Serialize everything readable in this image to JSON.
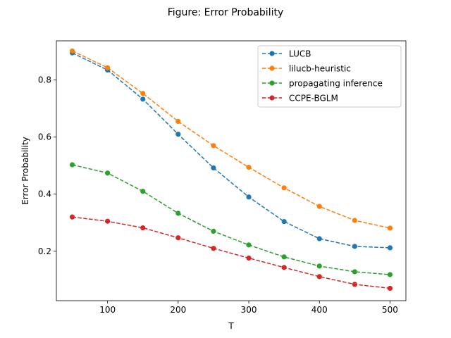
{
  "chart_data": {
    "type": "line",
    "title": "Figure: Error Probability",
    "xlabel": "T",
    "ylabel": "Error Probability",
    "xlim": [
      27.5,
      522.5
    ],
    "ylim": [
      0.0267,
      0.9373
    ],
    "xticks": [
      100,
      200,
      300,
      400,
      500
    ],
    "yticks": [
      0.2,
      0.4,
      0.6,
      0.8
    ],
    "xtick_labels": [
      "100",
      "200",
      "300",
      "400",
      "500"
    ],
    "ytick_labels": [
      "0.2",
      "0.4",
      "0.6",
      "0.8"
    ],
    "grid": false,
    "legend_position": "top-right",
    "x": [
      50,
      100,
      150,
      200,
      250,
      300,
      350,
      400,
      450,
      500
    ],
    "series": [
      {
        "name": "LUCB",
        "color": "#1f77b4",
        "line_style": "dashed",
        "marker": "circle",
        "values": [
          0.895,
          0.835,
          0.733,
          0.61,
          0.492,
          0.39,
          0.304,
          0.244,
          0.217,
          0.212
        ]
      },
      {
        "name": "lilucb-heuristic",
        "color": "#ff7f0e",
        "line_style": "dashed",
        "marker": "circle",
        "values": [
          0.902,
          0.843,
          0.753,
          0.655,
          0.57,
          0.494,
          0.422,
          0.357,
          0.308,
          0.281
        ]
      },
      {
        "name": "propagating inference",
        "color": "#2ca02c",
        "line_style": "dashed",
        "marker": "circle",
        "values": [
          0.503,
          0.474,
          0.41,
          0.333,
          0.27,
          0.222,
          0.18,
          0.148,
          0.128,
          0.118
        ]
      },
      {
        "name": "CCPE-BGLM",
        "color": "#d62728",
        "line_style": "dashed",
        "marker": "circle",
        "values": [
          0.32,
          0.305,
          0.282,
          0.247,
          0.21,
          0.176,
          0.143,
          0.111,
          0.084,
          0.07
        ]
      }
    ]
  }
}
